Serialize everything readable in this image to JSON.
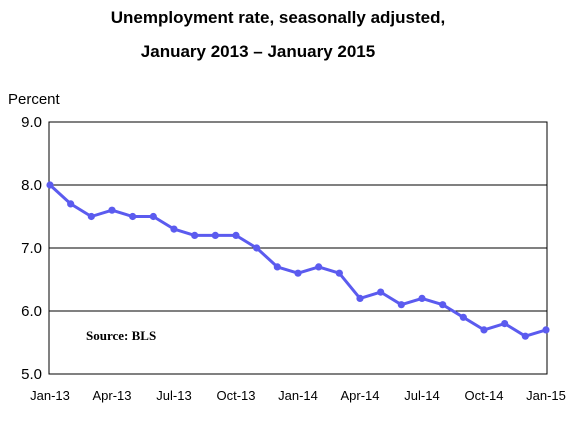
{
  "chart_data": {
    "type": "line",
    "title_line1": "Unemployment rate, seasonally adjusted,",
    "title_line2": "January 2013 – January 2015",
    "ylabel": "Percent",
    "xlabel": "",
    "ylim": [
      5.0,
      9.0
    ],
    "yticks": [
      "5.0",
      "6.0",
      "7.0",
      "8.0",
      "9.0"
    ],
    "x_tick_labels": [
      "Jan-13",
      "Apr-13",
      "Jul-13",
      "Oct-13",
      "Jan-14",
      "Apr-14",
      "Jul-14",
      "Oct-14",
      "Jan-15"
    ],
    "grid": "horizontal",
    "source_note": "Source:  BLS",
    "line_color": "#5b5bef",
    "x": [
      "Jan-13",
      "Feb-13",
      "Mar-13",
      "Apr-13",
      "May-13",
      "Jun-13",
      "Jul-13",
      "Aug-13",
      "Sep-13",
      "Oct-13",
      "Nov-13",
      "Dec-13",
      "Jan-14",
      "Feb-14",
      "Mar-14",
      "Apr-14",
      "May-14",
      "Jun-14",
      "Jul-14",
      "Aug-14",
      "Sep-14",
      "Oct-14",
      "Nov-14",
      "Dec-14",
      "Jan-15"
    ],
    "values": [
      8.0,
      7.7,
      7.5,
      7.6,
      7.5,
      7.5,
      7.3,
      7.2,
      7.2,
      7.2,
      7.0,
      6.7,
      6.6,
      6.7,
      6.6,
      6.2,
      6.3,
      6.1,
      6.2,
      6.1,
      5.9,
      5.7,
      5.8,
      5.6,
      5.7
    ]
  }
}
